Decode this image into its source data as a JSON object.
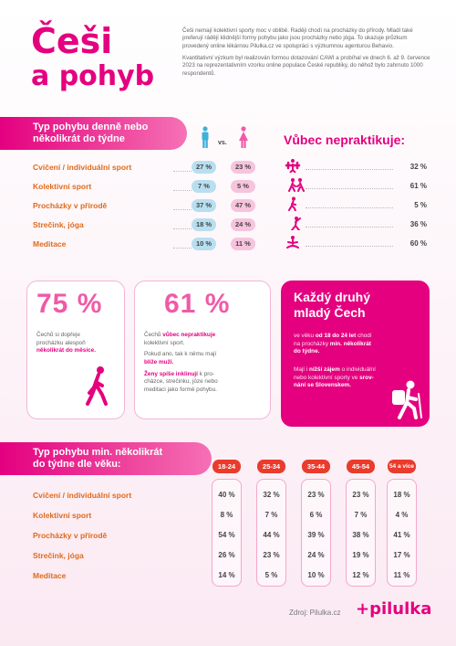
{
  "title": {
    "line1": "Češi",
    "line2": "a pohyb"
  },
  "intro": [
    "Češi nemají kolektivní sporty moc v oblibě. Raději chodí na procházky do přírody. Mladí také preferují rádějí klidnější formy pohybu jako jsou procházky nebo jóga. To ukazuje průzkum provedený online lékárnou Pilulka.cz ve spolupráci s výzkumnou agenturou Behavio.",
    "Kvantitativní výzkum byl realizován formou dotazování CAWI a probíhal ve dnech 6. až 9. července 2023 na reprezentativním vzorku online populace České republiky, do něhož bylo zahrnuto 1000 respondentů."
  ],
  "gender": {
    "header": [
      "Typ pohybu denně nebo",
      "několikrát do týdne"
    ],
    "vs": "vs.",
    "rows": [
      {
        "label": "Cvičení / individuální sport",
        "male": "27 %",
        "female": "23 %"
      },
      {
        "label": "Kolektivní sport",
        "male": "7 %",
        "female": "5 %"
      },
      {
        "label": "Procházky v přírodě",
        "male": "37 %",
        "female": "47 %"
      },
      {
        "label": "Strečink, jóga",
        "male": "18 %",
        "female": "24 %"
      },
      {
        "label": "Meditace",
        "male": "10 %",
        "female": "11 %"
      }
    ],
    "colors": {
      "male": "#b8dfef",
      "female": "#f7c3dd"
    }
  },
  "never": {
    "title": "Vůbec nepraktikuje:",
    "rows": [
      {
        "icon": "exercise-icon",
        "value": "32 %"
      },
      {
        "icon": "team-sport-icon",
        "value": "61 %"
      },
      {
        "icon": "walking-icon",
        "value": "5 %"
      },
      {
        "icon": "stretching-icon",
        "value": "36 %"
      },
      {
        "icon": "meditation-icon",
        "value": "60 %"
      }
    ]
  },
  "card1": {
    "pct": "75 %",
    "text1": "Čechů si dopřeje",
    "text2": "procházku alespoň",
    "bold": "několikrát do měsíce."
  },
  "card2": {
    "pct": "61 %",
    "t1a": "Čechů ",
    "t1b": "vůbec nepraktikuje",
    "t1c": "kolektivní sport.",
    "t2a": "Pokud ano, tak k němu mají",
    "t2b": "blíže muži.",
    "t3a": "Ženy spíše inklinují",
    "t3b": " k pro-",
    "t3c": "cházce, strečinku, józe nebo",
    "t3d": "meditaci jako formě pohybu."
  },
  "card3": {
    "head1": "Každý druhý",
    "head2": "mladý Čech",
    "p1a": "ve věku ",
    "p1b": "od 18 do 24 let",
    "p1c": " chodí",
    "p1d": "na procházky ",
    "p1e": "min. několikrát",
    "p1f": "do týdne.",
    "p2a": "Mají i ",
    "p2b": "nižší zájem",
    "p2c": " o individuální",
    "p2d": "nebo kolektivní sporty ve ",
    "p2e": "srov-",
    "p2f": "nání se Slovenskem."
  },
  "age": {
    "header": [
      "Typ pohybu min. několikrát",
      "do týdne dle věku:"
    ],
    "groups": [
      "18-24",
      "25-34",
      "35-44",
      "45-54",
      "54 a více"
    ],
    "rows": [
      {
        "label": "Cvičení / individuální sport",
        "values": [
          "40 %",
          "32 %",
          "23 %",
          "23 %",
          "18 %"
        ]
      },
      {
        "label": "Kolektivní sport",
        "values": [
          "8 %",
          "7 %",
          "6 %",
          "7 %",
          "4 %"
        ]
      },
      {
        "label": "Procházky v přírodě",
        "values": [
          "54 %",
          "44 %",
          "39 %",
          "38 %",
          "41 %"
        ]
      },
      {
        "label": "Strečink, jóga",
        "values": [
          "26 %",
          "23 %",
          "24 %",
          "19 %",
          "17 %"
        ]
      },
      {
        "label": "Meditace",
        "values": [
          "14 %",
          "5 %",
          "10 %",
          "12 %",
          "11 %"
        ]
      }
    ]
  },
  "footer": {
    "source": "Zdroj: Pilulka.cz",
    "logo": "+pilulka"
  },
  "colors": {
    "brand": "#e4007f",
    "label": "#e06a1a",
    "age_header": "#ea3b2c"
  }
}
